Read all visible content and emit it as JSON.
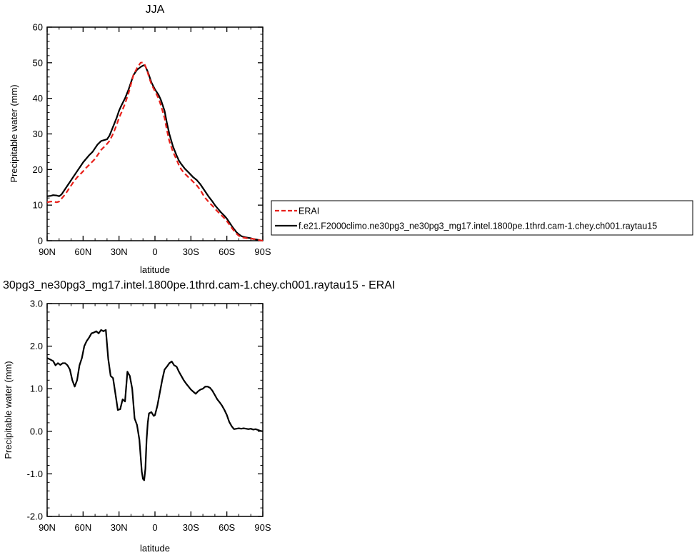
{
  "chart_data": [
    {
      "type": "line",
      "title": "JJA",
      "xlabel": "latitude",
      "ylabel": "Precipitable water (mm)",
      "xlim": [
        90,
        -90
      ],
      "ylim": [
        0,
        60
      ],
      "xticks": [
        90,
        60,
        30,
        0,
        -30,
        -60,
        -90
      ],
      "xtick_labels": [
        "90N",
        "60N",
        "30N",
        "0",
        "30S",
        "60S",
        "90S"
      ],
      "yticks": [
        0,
        10,
        20,
        30,
        40,
        50,
        60
      ],
      "ytick_labels": [
        "0",
        "10",
        "20",
        "30",
        "40",
        "50",
        "60"
      ],
      "legend_position": "right",
      "series": [
        {
          "name": "ERAI",
          "color": "#e8201a",
          "dash": "dashed",
          "x": [
            90,
            87,
            85,
            82,
            80,
            78,
            75,
            72,
            70,
            68,
            65,
            62,
            60,
            58,
            55,
            52,
            50,
            48,
            45,
            42,
            40,
            38,
            35,
            32,
            30,
            28,
            25,
            22,
            20,
            18,
            15,
            12,
            10,
            9,
            8,
            7,
            6,
            5,
            3,
            0,
            -3,
            -5,
            -8,
            -10,
            -12,
            -15,
            -18,
            -20,
            -22,
            -25,
            -28,
            -30,
            -32,
            -35,
            -38,
            -40,
            -42,
            -45,
            -48,
            -50,
            -52,
            -55,
            -58,
            -60,
            -62,
            -65,
            -68,
            -70,
            -72,
            -75,
            -78,
            -80,
            -82,
            -85,
            -88,
            -90
          ],
          "y": [
            10.8,
            11.0,
            11.0,
            10.8,
            11.0,
            11.8,
            13.0,
            14.5,
            15.5,
            16.5,
            17.8,
            18.8,
            19.5,
            20.3,
            21.3,
            22.3,
            23.0,
            24.0,
            25.5,
            26.5,
            27.2,
            28.0,
            30.0,
            32.5,
            34.5,
            36.0,
            38.5,
            41.5,
            44.0,
            46.5,
            48.5,
            50.0,
            50.1,
            49.8,
            49.0,
            48.2,
            47.2,
            46.0,
            44.0,
            42.0,
            40.0,
            38.0,
            34.5,
            31.0,
            28.0,
            25.0,
            22.8,
            21.2,
            20.0,
            18.8,
            17.8,
            17.2,
            16.5,
            15.5,
            14.2,
            13.0,
            12.0,
            10.8,
            9.8,
            9.0,
            8.3,
            7.3,
            6.3,
            5.5,
            4.6,
            3.2,
            2.0,
            1.4,
            1.0,
            0.8,
            0.6,
            0.6,
            0.5,
            0.3,
            0.1,
            0.0
          ]
        },
        {
          "name": "f.e21.F2000climo.ne30pg3_ne30pg3_mg17.intel.1800pe.1thrd.cam-1.chey.ch001.raytau15",
          "color": "#000000",
          "dash": "solid",
          "x": [
            90,
            87,
            85,
            82,
            80,
            78,
            75,
            72,
            70,
            68,
            65,
            62,
            60,
            58,
            55,
            52,
            50,
            48,
            45,
            42,
            40,
            38,
            35,
            32,
            30,
            28,
            25,
            22,
            20,
            18,
            15,
            12,
            10,
            9,
            8,
            7,
            6,
            5,
            3,
            0,
            -3,
            -5,
            -8,
            -10,
            -12,
            -15,
            -18,
            -20,
            -22,
            -25,
            -28,
            -30,
            -32,
            -35,
            -38,
            -40,
            -42,
            -45,
            -48,
            -50,
            -52,
            -55,
            -58,
            -60,
            -62,
            -65,
            -68,
            -70,
            -72,
            -75,
            -78,
            -80,
            -82,
            -85,
            -88,
            -90
          ],
          "y": [
            12.5,
            12.6,
            12.8,
            12.7,
            12.5,
            13.0,
            14.5,
            16.0,
            17.0,
            18.0,
            19.5,
            21.0,
            22.0,
            22.8,
            24.0,
            25.0,
            26.0,
            27.0,
            28.0,
            28.3,
            28.5,
            29.5,
            32.0,
            34.5,
            36.5,
            38.0,
            40.0,
            42.5,
            44.5,
            46.5,
            48.0,
            48.8,
            49.2,
            49.3,
            49.0,
            48.2,
            47.5,
            46.5,
            44.5,
            42.5,
            41.0,
            39.5,
            36.5,
            33.0,
            30.0,
            26.5,
            24.0,
            22.5,
            21.5,
            20.2,
            19.2,
            18.5,
            17.8,
            17.0,
            15.8,
            14.8,
            13.8,
            12.3,
            11.0,
            10.0,
            9.2,
            8.0,
            7.0,
            6.2,
            5.2,
            3.7,
            2.4,
            1.8,
            1.3,
            1.0,
            0.8,
            0.7,
            0.5,
            0.3,
            0.1,
            0.0
          ]
        }
      ]
    },
    {
      "type": "line",
      "title": "30pg3_ne30pg3_mg17.intel.1800pe.1thrd.cam-1.chey.ch001.raytau15 - ERAI",
      "xlabel": "latitude",
      "ylabel": "Precipitable water (mm)",
      "xlim": [
        90,
        -90
      ],
      "ylim": [
        -2.0,
        3.0
      ],
      "xticks": [
        90,
        60,
        30,
        0,
        -30,
        -60,
        -90
      ],
      "xtick_labels": [
        "90N",
        "60N",
        "30N",
        "0",
        "30S",
        "60S",
        "90S"
      ],
      "yticks": [
        -2.0,
        -1.0,
        0.0,
        1.0,
        2.0,
        3.0
      ],
      "ytick_labels": [
        "-2.0",
        "-1.0",
        "0.0",
        "1.0",
        "2.0",
        "3.0"
      ],
      "series": [
        {
          "color": "#000000",
          "dash": "solid",
          "x": [
            90,
            87,
            85,
            83,
            81,
            79,
            77,
            75,
            73,
            71,
            69,
            67,
            65,
            63,
            61,
            59,
            57,
            55,
            53,
            51,
            49,
            47,
            45,
            43,
            41,
            39,
            37,
            35,
            33,
            31,
            29,
            27,
            25,
            23,
            21,
            19,
            17,
            15,
            13,
            11,
            10,
            9,
            8,
            7,
            6,
            5,
            3,
            1,
            0,
            -2,
            -4,
            -6,
            -8,
            -10,
            -12,
            -14,
            -16,
            -18,
            -20,
            -22,
            -24,
            -26,
            -28,
            -30,
            -32,
            -34,
            -36,
            -38,
            -40,
            -42,
            -44,
            -46,
            -48,
            -50,
            -52,
            -54,
            -56,
            -58,
            -60,
            -62,
            -64,
            -66,
            -68,
            -70,
            -72,
            -74,
            -76,
            -78,
            -80,
            -82,
            -84,
            -86,
            -88,
            -90
          ],
          "y": [
            1.72,
            1.68,
            1.65,
            1.55,
            1.6,
            1.56,
            1.6,
            1.6,
            1.55,
            1.45,
            1.2,
            1.05,
            1.2,
            1.55,
            1.72,
            2.0,
            2.12,
            2.2,
            2.3,
            2.32,
            2.35,
            2.3,
            2.38,
            2.35,
            2.38,
            1.7,
            1.3,
            1.25,
            0.88,
            0.5,
            0.52,
            0.75,
            0.7,
            1.4,
            1.3,
            1.0,
            0.3,
            0.15,
            -0.2,
            -0.95,
            -1.12,
            -1.15,
            -0.88,
            -0.2,
            0.2,
            0.42,
            0.45,
            0.36,
            0.38,
            0.6,
            0.9,
            1.2,
            1.45,
            1.52,
            1.6,
            1.64,
            1.55,
            1.52,
            1.4,
            1.3,
            1.2,
            1.12,
            1.05,
            0.98,
            0.93,
            0.88,
            0.94,
            0.98,
            1.0,
            1.05,
            1.05,
            1.02,
            0.95,
            0.85,
            0.75,
            0.68,
            0.6,
            0.5,
            0.38,
            0.22,
            0.12,
            0.05,
            0.06,
            0.07,
            0.06,
            0.07,
            0.06,
            0.05,
            0.06,
            0.04,
            0.05,
            0.03,
            0.01,
            0.0
          ]
        }
      ]
    }
  ]
}
